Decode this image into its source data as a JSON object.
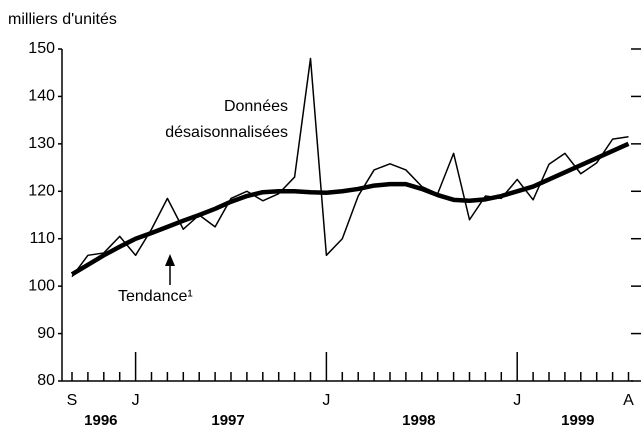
{
  "chart_data": {
    "type": "line",
    "y_axis_label": "milliers d'unités",
    "categories": [
      "S",
      null,
      null,
      null,
      "J",
      null,
      null,
      null,
      null,
      null,
      null,
      null,
      null,
      null,
      null,
      null,
      "J",
      null,
      null,
      null,
      null,
      null,
      null,
      null,
      null,
      null,
      null,
      null,
      "J",
      null,
      null,
      null,
      null,
      null,
      null,
      "A"
    ],
    "years": [
      "1996",
      "1997",
      "1998",
      "1999"
    ],
    "series": [
      {
        "name": "Données désaisonnalisées",
        "name_lines": [
          "Données",
          "désaisonnalisées"
        ],
        "color": "#000000",
        "width": 1.5,
        "values": [
          102,
          106.5,
          107,
          110.5,
          106.5,
          112,
          118.5,
          112,
          115,
          112.5,
          118.5,
          120,
          118,
          119.5,
          123,
          148,
          106.5,
          110,
          119,
          124.5,
          125.8,
          124.5,
          121,
          119.5,
          128,
          114,
          119,
          118.5,
          122.5,
          118.2,
          125.7,
          128,
          123.7,
          126,
          131,
          131.5
        ]
      },
      {
        "name": "Tendance¹",
        "color": "#000000",
        "width": 4.5,
        "values": [
          102.5,
          104.5,
          106.5,
          108.3,
          110,
          111.2,
          112.5,
          113.8,
          115,
          116.3,
          117.8,
          119,
          119.8,
          120,
          120,
          119.8,
          119.7,
          120,
          120.5,
          121.2,
          121.5,
          121.5,
          120.5,
          119.2,
          118.2,
          118,
          118.3,
          119,
          120,
          121,
          122.5,
          124,
          125.5,
          127,
          128.5,
          130
        ]
      }
    ],
    "ylim": [
      80,
      150
    ],
    "yticks": [
      80,
      90,
      100,
      110,
      120,
      130,
      140,
      150
    ]
  }
}
